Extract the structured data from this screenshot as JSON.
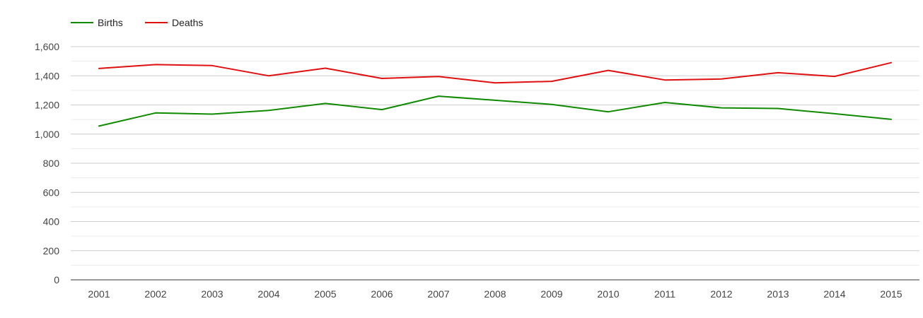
{
  "chart_data": {
    "type": "line",
    "categories": [
      "2001",
      "2002",
      "2003",
      "2004",
      "2005",
      "2006",
      "2007",
      "2008",
      "2009",
      "2010",
      "2011",
      "2012",
      "2013",
      "2014",
      "2015"
    ],
    "series": [
      {
        "name": "Births",
        "color": "#108a00",
        "values": [
          1055,
          1145,
          1137,
          1162,
          1210,
          1168,
          1260,
          1232,
          1204,
          1153,
          1217,
          1180,
          1176,
          1140,
          1101
        ]
      },
      {
        "name": "Deaths",
        "color": "#e01010",
        "values": [
          1450,
          1477,
          1470,
          1400,
          1452,
          1382,
          1395,
          1352,
          1362,
          1437,
          1371,
          1378,
          1421,
          1396,
          1490
        ]
      }
    ],
    "ylim": [
      0,
      1600
    ],
    "yticks": [
      0,
      200,
      400,
      600,
      800,
      1000,
      1200,
      1400,
      1600
    ],
    "ytick_labels": [
      "0",
      "200",
      "400",
      "600",
      "800",
      "1,000",
      "1,200",
      "1,400",
      "1,600"
    ],
    "grid": true,
    "legend_position": "top-left",
    "title": "",
    "xlabel": "",
    "ylabel": ""
  }
}
